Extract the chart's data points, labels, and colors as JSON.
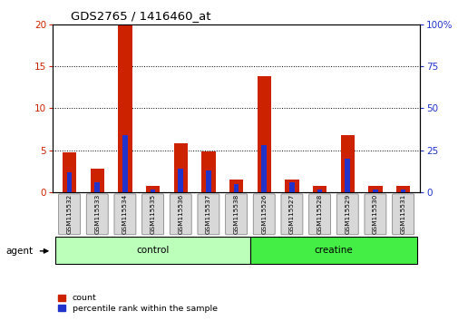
{
  "title": "GDS2765 / 1416460_at",
  "samples": [
    "GSM115532",
    "GSM115533",
    "GSM115534",
    "GSM115535",
    "GSM115536",
    "GSM115537",
    "GSM115538",
    "GSM115526",
    "GSM115527",
    "GSM115528",
    "GSM115529",
    "GSM115530",
    "GSM115531"
  ],
  "count_values": [
    4.8,
    2.8,
    20.0,
    0.8,
    5.9,
    4.9,
    1.5,
    13.8,
    1.6,
    0.8,
    6.8,
    0.8,
    0.8
  ],
  "percentile_values": [
    12,
    6,
    34,
    2,
    14,
    13,
    5,
    28,
    6,
    2,
    20,
    2,
    2
  ],
  "ylim_left": [
    0,
    20
  ],
  "ylim_right": [
    0,
    100
  ],
  "yticks_left": [
    0,
    5,
    10,
    15,
    20
  ],
  "yticks_right": [
    0,
    25,
    50,
    75,
    100
  ],
  "bar_color_red": "#CC2200",
  "bar_color_blue": "#2233CC",
  "groups": [
    {
      "label": "control",
      "indices": [
        0,
        1,
        2,
        3,
        4,
        5,
        6
      ],
      "color": "#BBFFBB"
    },
    {
      "label": "creatine",
      "indices": [
        7,
        8,
        9,
        10,
        11,
        12
      ],
      "color": "#44EE44"
    }
  ],
  "group_label": "agent",
  "legend_count": "count",
  "legend_percentile": "percentile rank within the sample",
  "axis_left_color": "#CC2200",
  "axis_right_color": "#2233CC",
  "bar_width": 0.5,
  "blue_bar_width": 0.18
}
